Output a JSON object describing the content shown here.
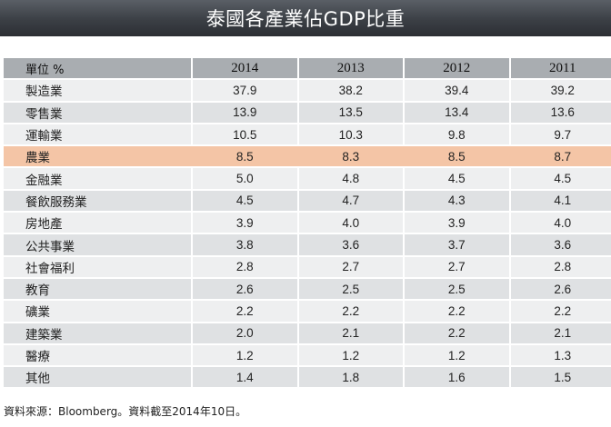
{
  "title": "泰國各產業佔GDP比重",
  "table": {
    "unit_label": "單位 %",
    "years": [
      "2014",
      "2013",
      "2012",
      "2011"
    ],
    "rows": [
      {
        "sector": "製造業",
        "values": [
          "37.9",
          "38.2",
          "39.4",
          "39.2"
        ],
        "highlight": false
      },
      {
        "sector": "零售業",
        "values": [
          "13.9",
          "13.5",
          "13.4",
          "13.6"
        ],
        "highlight": false
      },
      {
        "sector": "運輸業",
        "values": [
          "10.5",
          "10.3",
          "9.8",
          "9.7"
        ],
        "highlight": false
      },
      {
        "sector": "農業",
        "values": [
          "8.5",
          "8.3",
          "8.5",
          "8.7"
        ],
        "highlight": true
      },
      {
        "sector": "金融業",
        "values": [
          "5.0",
          "4.8",
          "4.5",
          "4.5"
        ],
        "highlight": false
      },
      {
        "sector": "餐飲服務業",
        "values": [
          "4.5",
          "4.7",
          "4.3",
          "4.1"
        ],
        "highlight": false
      },
      {
        "sector": "房地產",
        "values": [
          "3.9",
          "4.0",
          "3.9",
          "4.0"
        ],
        "highlight": false
      },
      {
        "sector": "公共事業",
        "values": [
          "3.8",
          "3.6",
          "3.7",
          "3.6"
        ],
        "highlight": false
      },
      {
        "sector": "社會福利",
        "values": [
          "2.8",
          "2.7",
          "2.7",
          "2.8"
        ],
        "highlight": false
      },
      {
        "sector": "教育",
        "values": [
          "2.6",
          "2.5",
          "2.5",
          "2.6"
        ],
        "highlight": false
      },
      {
        "sector": "礦業",
        "values": [
          "2.2",
          "2.2",
          "2.2",
          "2.2"
        ],
        "highlight": false
      },
      {
        "sector": "建築業",
        "values": [
          "2.0",
          "2.1",
          "2.2",
          "2.1"
        ],
        "highlight": false
      },
      {
        "sector": "醫療",
        "values": [
          "1.2",
          "1.2",
          "1.2",
          "1.3"
        ],
        "highlight": false
      },
      {
        "sector": "其他",
        "values": [
          "1.4",
          "1.8",
          "1.6",
          "1.5"
        ],
        "highlight": false
      }
    ],
    "highlight_color": "#f4c5a6"
  },
  "footnote": "資料來源：Bloomberg。資料截至2014年10日。"
}
